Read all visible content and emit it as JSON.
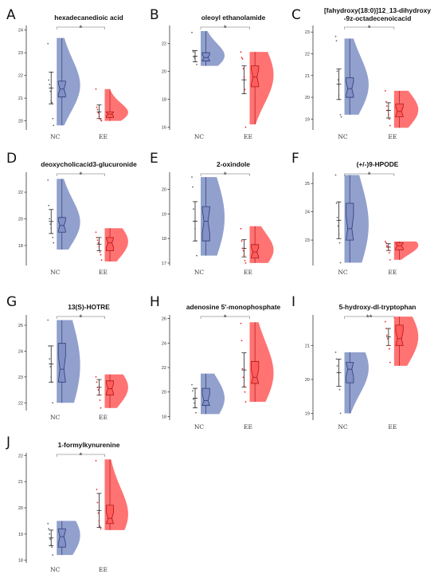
{
  "colors": {
    "NC": "#7f8fc4",
    "NC_dark": "#2f3a78",
    "EE": "#ff5a5a",
    "EE_dark": "#b01818",
    "point_NC": "#666666",
    "point_EE": "#ee2222"
  },
  "chart_data": [
    {
      "panel": "A",
      "type": "raincloud",
      "title": "hexadecanedioic acid",
      "categories": [
        "NC",
        "EE"
      ],
      "ylim": [
        19.6,
        24.2
      ],
      "yticks": [
        20,
        21,
        22,
        23,
        24
      ],
      "significance": "*",
      "groups": [
        {
          "name": "NC",
          "mean": 21.45,
          "sd": 0.7,
          "min": 19.8,
          "max": 23.65,
          "q1": 21.05,
          "median": 21.4,
          "q3": 21.75,
          "points": [
            23.4,
            21.8,
            21.6,
            21.3,
            20.9,
            20.8,
            20.1,
            19.8
          ]
        },
        {
          "name": "EE",
          "mean": 20.4,
          "sd": 0.3,
          "min": 20.0,
          "max": 21.4,
          "q1": 20.15,
          "median": 20.3,
          "q3": 20.4,
          "points": [
            21.4,
            20.6,
            20.5,
            20.35,
            20.2,
            20.1,
            20.05,
            20.0
          ]
        }
      ]
    },
    {
      "panel": "B",
      "type": "raincloud",
      "title": "oleoyl ethanolamide",
      "categories": [
        "NC",
        "EE"
      ],
      "ylim": [
        15.8,
        23.3
      ],
      "yticks": [
        16,
        18,
        20,
        22
      ],
      "significance": "*",
      "groups": [
        {
          "name": "NC",
          "mean": 21.1,
          "sd": 0.4,
          "min": 20.4,
          "max": 22.9,
          "q1": 20.75,
          "median": 21.0,
          "q3": 21.35,
          "points": [
            22.8,
            21.5,
            21.4,
            21.0,
            20.9,
            20.7,
            20.5
          ]
        },
        {
          "name": "EE",
          "mean": 19.4,
          "sd": 1.0,
          "min": 16.2,
          "max": 21.4,
          "q1": 18.9,
          "median": 19.6,
          "q3": 20.4,
          "points": [
            21.4,
            21.0,
            20.9,
            20.2,
            19.6,
            18.7,
            16.0
          ]
        }
      ]
    },
    {
      "panel": "C",
      "type": "raincloud",
      "title": "[fahydroxy(18:0)]12_13-dihydroxy",
      "title2": "-9z-octadecenoicacid",
      "categories": [
        "NC",
        "EE"
      ],
      "ylim": [
        18.5,
        23.3
      ],
      "yticks": [
        19,
        20,
        21,
        22,
        23
      ],
      "significance": "*",
      "groups": [
        {
          "name": "NC",
          "mean": 20.6,
          "sd": 0.7,
          "min": 19.2,
          "max": 22.7,
          "q1": 20.0,
          "median": 20.4,
          "q3": 20.9,
          "points": [
            22.8,
            22.6,
            21.2,
            20.8,
            20.1,
            19.9,
            19.2,
            19.1
          ]
        },
        {
          "name": "EE",
          "mean": 19.4,
          "sd": 0.35,
          "min": 18.6,
          "max": 20.3,
          "q1": 19.1,
          "median": 19.35,
          "q3": 19.7,
          "points": [
            20.3,
            19.8,
            19.6,
            19.4,
            19.2,
            19.0,
            18.7
          ]
        }
      ]
    },
    {
      "panel": "D",
      "type": "raincloud",
      "title": "deoxycholicacid3-glucuronide",
      "categories": [
        "NC",
        "EE"
      ],
      "ylim": [
        16.5,
        23.5
      ],
      "yticks": [
        18,
        20,
        22
      ],
      "significance": "*",
      "groups": [
        {
          "name": "NC",
          "mean": 19.8,
          "sd": 0.9,
          "min": 17.7,
          "max": 23.0,
          "q1": 19.0,
          "median": 19.5,
          "q3": 20.1,
          "points": [
            22.9,
            21.0,
            20.0,
            19.6,
            19.3,
            18.9,
            18.6,
            18.2
          ]
        },
        {
          "name": "EE",
          "mean": 18.1,
          "sd": 0.5,
          "min": 16.8,
          "max": 19.3,
          "q1": 17.6,
          "median": 18.2,
          "q3": 18.6,
          "points": [
            19.0,
            18.6,
            18.4,
            18.2,
            17.9,
            17.5,
            17.3,
            16.9
          ]
        }
      ]
    },
    {
      "panel": "E",
      "type": "raincloud",
      "title": "2-oxindole",
      "categories": [
        "NC",
        "EE"
      ],
      "ylim": [
        16.9,
        20.7
      ],
      "yticks": [
        17,
        18,
        19,
        20
      ],
      "significance": "*",
      "groups": [
        {
          "name": "NC",
          "mean": 18.7,
          "sd": 0.8,
          "min": 17.3,
          "max": 20.5,
          "q1": 17.9,
          "median": 18.7,
          "q3": 19.3,
          "points": [
            20.5,
            20.1,
            19.2,
            18.7,
            18.4,
            17.9,
            17.3
          ]
        },
        {
          "name": "EE",
          "mean": 17.6,
          "sd": 0.35,
          "min": 17.0,
          "max": 18.5,
          "q1": 17.2,
          "median": 17.45,
          "q3": 17.75,
          "points": [
            18.4,
            17.9,
            17.6,
            17.5,
            17.3,
            17.1,
            17.0
          ]
        }
      ]
    },
    {
      "panel": "F",
      "type": "raincloud",
      "title": "(+/-)9-HPODE",
      "categories": [
        "NC",
        "EE"
      ],
      "ylim": [
        22.1,
        25.4
      ],
      "yticks": [
        23,
        24,
        25
      ],
      "significance": "*",
      "groups": [
        {
          "name": "NC",
          "mean": 23.7,
          "sd": 0.65,
          "min": 22.2,
          "max": 25.3,
          "q1": 23.0,
          "median": 23.4,
          "q3": 24.3,
          "points": [
            25.3,
            24.3,
            23.8,
            23.5,
            23.2,
            22.9,
            22.2
          ]
        },
        {
          "name": "EE",
          "mean": 22.75,
          "sd": 0.12,
          "min": 22.3,
          "max": 22.95,
          "q1": 22.65,
          "median": 22.8,
          "q3": 22.9,
          "points": [
            22.95,
            22.9,
            22.8,
            22.75,
            22.65,
            22.55,
            22.3
          ]
        }
      ]
    },
    {
      "panel": "G",
      "type": "raincloud",
      "title": "13(S)-HOTRE",
      "categories": [
        "NC",
        "EE"
      ],
      "ylim": [
        21.7,
        25.4
      ],
      "yticks": [
        22,
        23,
        24,
        25
      ],
      "significance": "*",
      "groups": [
        {
          "name": "NC",
          "mean": 23.5,
          "sd": 0.7,
          "min": 22.0,
          "max": 25.2,
          "q1": 22.8,
          "median": 23.3,
          "q3": 24.3,
          "points": [
            25.2,
            24.2,
            23.7,
            23.4,
            23.0,
            22.8,
            22.0
          ]
        },
        {
          "name": "EE",
          "mean": 22.6,
          "sd": 0.3,
          "min": 21.8,
          "max": 23.1,
          "q1": 22.3,
          "median": 22.55,
          "q3": 22.85,
          "points": [
            23.0,
            22.8,
            22.6,
            22.5,
            22.3,
            22.1,
            21.8
          ]
        }
      ]
    },
    {
      "panel": "H",
      "type": "raincloud",
      "title": "adenosine 5'-monophosphate",
      "categories": [
        "NC",
        "EE"
      ],
      "ylim": [
        17.7,
        26.3
      ],
      "yticks": [
        18,
        20,
        22,
        24,
        26
      ],
      "significance": "*",
      "groups": [
        {
          "name": "NC",
          "mean": 19.5,
          "sd": 0.8,
          "min": 18.2,
          "max": 21.5,
          "q1": 18.9,
          "median": 19.3,
          "q3": 20.3,
          "points": [
            20.6,
            20.1,
            19.4,
            19.1,
            18.8,
            18.3
          ]
        },
        {
          "name": "EE",
          "mean": 21.8,
          "sd": 1.4,
          "min": 19.2,
          "max": 25.7,
          "q1": 20.7,
          "median": 21.2,
          "q3": 22.5,
          "points": [
            25.6,
            24.2,
            21.9,
            21.2,
            20.5,
            20.0,
            19.2
          ]
        }
      ]
    },
    {
      "panel": "I",
      "type": "raincloud",
      "title": "5-hydroxy-dl-tryptophan",
      "categories": [
        "NC",
        "EE"
      ],
      "ylim": [
        18.8,
        21.9
      ],
      "yticks": [
        19,
        20,
        21
      ],
      "significance": "**",
      "groups": [
        {
          "name": "NC",
          "mean": 20.2,
          "sd": 0.4,
          "min": 19.0,
          "max": 20.8,
          "q1": 19.9,
          "median": 20.3,
          "q3": 20.5,
          "points": [
            20.8,
            20.6,
            20.4,
            20.2,
            20.0,
            19.7,
            19.0
          ]
        },
        {
          "name": "EE",
          "mean": 21.25,
          "sd": 0.25,
          "min": 20.4,
          "max": 21.85,
          "q1": 21.0,
          "median": 21.2,
          "q3": 21.6,
          "points": [
            21.7,
            21.5,
            21.3,
            21.2,
            21.0,
            20.9,
            20.5
          ]
        }
      ]
    },
    {
      "panel": "J",
      "type": "raincloud",
      "title": "1-formylkynurenine",
      "categories": [
        "NC",
        "EE"
      ],
      "ylim": [
        17.9,
        22.1
      ],
      "yticks": [
        18,
        19,
        20,
        21,
        22
      ],
      "significance": "*",
      "groups": [
        {
          "name": "NC",
          "mean": 18.85,
          "sd": 0.3,
          "min": 18.2,
          "max": 19.5,
          "q1": 18.5,
          "median": 18.9,
          "q3": 19.2,
          "points": [
            19.4,
            19.2,
            19.0,
            18.8,
            18.6,
            18.5,
            18.2
          ]
        },
        {
          "name": "EE",
          "mean": 19.9,
          "sd": 0.65,
          "min": 19.15,
          "max": 21.85,
          "q1": 19.4,
          "median": 19.6,
          "q3": 20.1,
          "points": [
            21.8,
            20.7,
            20.2,
            19.8,
            19.5,
            19.3,
            19.2
          ]
        }
      ]
    }
  ]
}
